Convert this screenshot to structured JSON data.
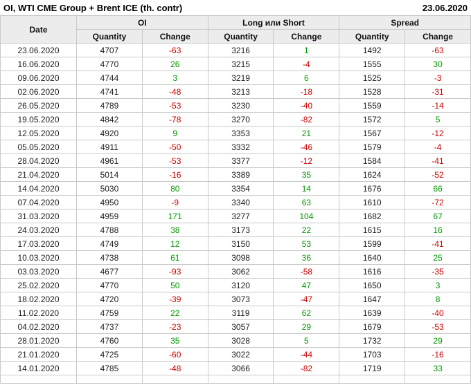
{
  "header": {
    "title": "OI, WTI CME Group + Brent ICE (th. contr)",
    "report_date": "23.06.2020"
  },
  "chart_data": {
    "type": "table",
    "title": "OI, WTI CME Group + Brent ICE (th. contr)",
    "date_header": "Date",
    "column_groups": [
      "OI",
      "Long или Short",
      "Spread"
    ],
    "sub_headers": [
      "Quantity",
      "Change"
    ],
    "columns": [
      "Date",
      "OI Quantity",
      "OI Change",
      "Long или Short Quantity",
      "Long или Short Change",
      "Spread Quantity",
      "Spread Change"
    ],
    "rows": [
      [
        "23.06.2020",
        4707,
        -63,
        3216,
        1,
        1492,
        -63
      ],
      [
        "16.06.2020",
        4770,
        26,
        3215,
        -4,
        1555,
        30
      ],
      [
        "09.06.2020",
        4744,
        3,
        3219,
        6,
        1525,
        -3
      ],
      [
        "02.06.2020",
        4741,
        -48,
        3213,
        -18,
        1528,
        -31
      ],
      [
        "26.05.2020",
        4789,
        -53,
        3230,
        -40,
        1559,
        -14
      ],
      [
        "19.05.2020",
        4842,
        -78,
        3270,
        -82,
        1572,
        5
      ],
      [
        "12.05.2020",
        4920,
        9,
        3353,
        21,
        1567,
        -12
      ],
      [
        "05.05.2020",
        4911,
        -50,
        3332,
        -46,
        1579,
        -4
      ],
      [
        "28.04.2020",
        4961,
        -53,
        3377,
        -12,
        1584,
        -41
      ],
      [
        "21.04.2020",
        5014,
        -16,
        3389,
        35,
        1624,
        -52
      ],
      [
        "14.04.2020",
        5030,
        80,
        3354,
        14,
        1676,
        66
      ],
      [
        "07.04.2020",
        4950,
        -9,
        3340,
        63,
        1610,
        -72
      ],
      [
        "31.03.2020",
        4959,
        171,
        3277,
        104,
        1682,
        67
      ],
      [
        "24.03.2020",
        4788,
        38,
        3173,
        22,
        1615,
        16
      ],
      [
        "17.03.2020",
        4749,
        12,
        3150,
        53,
        1599,
        -41
      ],
      [
        "10.03.2020",
        4738,
        61,
        3098,
        36,
        1640,
        25
      ],
      [
        "03.03.2020",
        4677,
        -93,
        3062,
        -58,
        1616,
        -35
      ],
      [
        "25.02.2020",
        4770,
        50,
        3120,
        47,
        1650,
        3
      ],
      [
        "18.02.2020",
        4720,
        -39,
        3073,
        -47,
        1647,
        8
      ],
      [
        "11.02.2020",
        4759,
        22,
        3119,
        62,
        1639,
        -40
      ],
      [
        "04.02.2020",
        4737,
        -23,
        3057,
        29,
        1679,
        -53
      ],
      [
        "28.01.2020",
        4760,
        35,
        3028,
        5,
        1732,
        29
      ],
      [
        "21.01.2020",
        4725,
        -60,
        3022,
        -44,
        1703,
        -16
      ],
      [
        "14.01.2020",
        4785,
        -48,
        3066,
        -82,
        1719,
        33
      ]
    ]
  },
  "colors": {
    "positive_change": "#009900",
    "negative_change": "#cc0000",
    "header_bg": "#ececec",
    "border": "#c9c9c9"
  }
}
